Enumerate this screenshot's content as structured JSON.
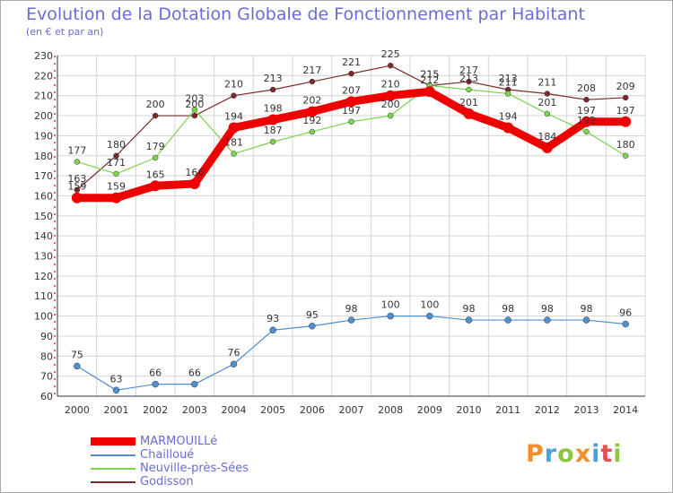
{
  "header": {
    "title": "Evolution de la Dotation Globale de Fonctionnement par Habitant",
    "subtitle": "(en € et par an)"
  },
  "logo": {
    "text": "Proxiti",
    "colors": [
      "#f28e2b",
      "#4aa3df",
      "#8dc63f",
      "#f28e2b",
      "#4aa3df",
      "#e05050",
      "#8dc63f"
    ]
  },
  "chart_data": {
    "type": "line",
    "title": "Evolution de la Dotation Globale de Fonctionnement par Habitant",
    "subtitle": "(en € et par an)",
    "xlabel": "",
    "ylabel": "",
    "categories": [
      "2000",
      "2001",
      "2002",
      "2003",
      "2004",
      "2005",
      "2006",
      "2007",
      "2008",
      "2009",
      "2010",
      "2011",
      "2012",
      "2013",
      "2014"
    ],
    "ylim": [
      60,
      230
    ],
    "yticks": [
      60,
      70,
      80,
      90,
      100,
      110,
      120,
      130,
      140,
      150,
      160,
      170,
      180,
      190,
      200,
      210,
      220,
      230
    ],
    "grid": true,
    "legend_position": "bottom-left",
    "series": [
      {
        "name": "MARMOUILLé",
        "color": "#ee0000",
        "values": [
          159,
          159,
          165,
          166,
          194,
          198,
          202,
          207,
          210,
          212,
          201,
          194,
          184,
          197,
          197
        ]
      },
      {
        "name": "Chailloué",
        "color": "#4f8fcf",
        "values": [
          75,
          63,
          66,
          66,
          76,
          93,
          95,
          98,
          100,
          100,
          98,
          98,
          98,
          98,
          96
        ]
      },
      {
        "name": "Neuville-près-Sées",
        "color": "#7dd34f",
        "values": [
          177,
          171,
          179,
          203,
          181,
          187,
          192,
          197,
          200,
          215,
          213,
          211,
          201,
          192,
          180
        ]
      },
      {
        "name": "Godisson",
        "color": "#7a2a2a",
        "values": [
          163,
          180,
          200,
          200,
          210,
          213,
          217,
          221,
          225,
          215,
          217,
          213,
          211,
          208,
          209
        ]
      }
    ]
  }
}
